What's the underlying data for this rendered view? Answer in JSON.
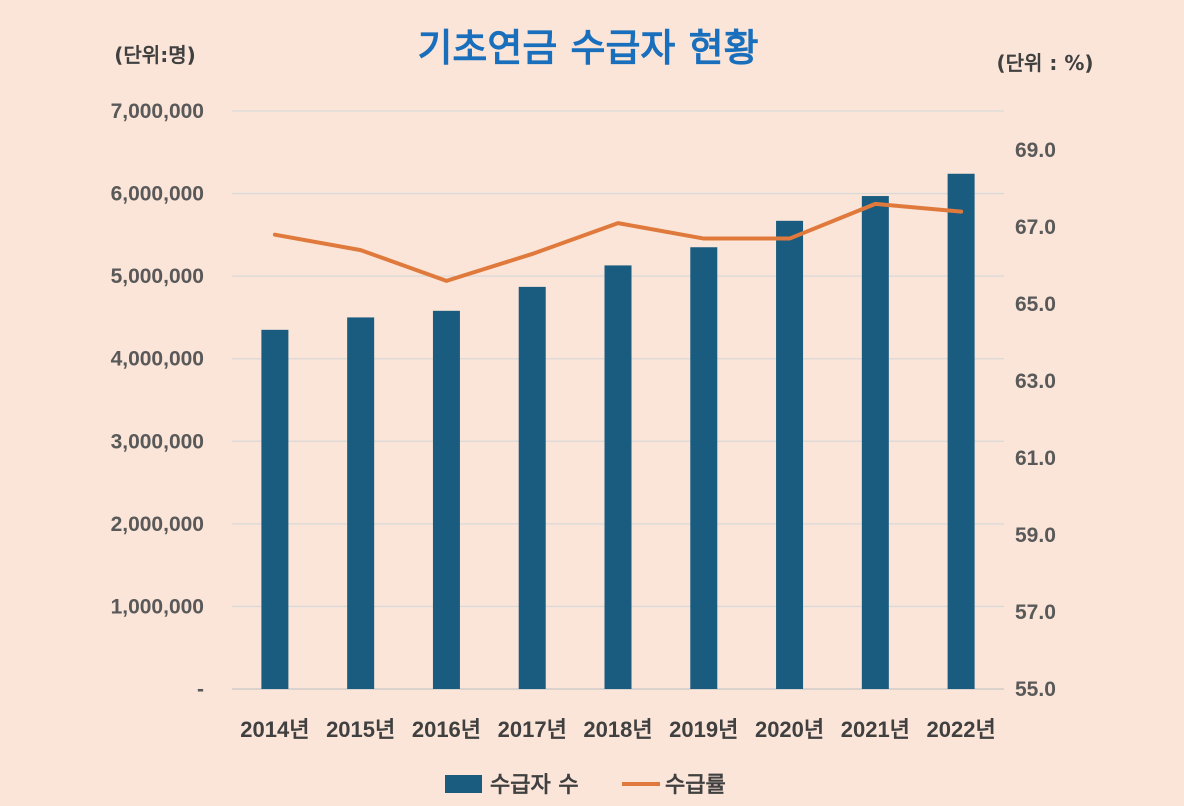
{
  "chart_data": {
    "type": "bar",
    "title": "기초연금 수급자 현황",
    "left_unit_label": "(단위:명)",
    "right_unit_label": "(단위 : %)",
    "categories": [
      "2014년",
      "2015년",
      "2016년",
      "2017년",
      "2018년",
      "2019년",
      "2020년",
      "2021년",
      "2022년"
    ],
    "series": [
      {
        "name": "수급자 수",
        "type": "bar",
        "axis": "left",
        "color": "#1a5c80",
        "values": [
          4350000,
          4500000,
          4580000,
          4870000,
          5130000,
          5350000,
          5670000,
          5970000,
          6240000
        ]
      },
      {
        "name": "수급률",
        "type": "line",
        "axis": "right",
        "color": "#e07a3c",
        "values": [
          66.8,
          66.4,
          65.6,
          66.3,
          67.1,
          66.7,
          66.7,
          67.6,
          67.4
        ]
      }
    ],
    "y_left": {
      "min": 0,
      "max": 7000000,
      "ticks": [
        0,
        1000000,
        2000000,
        3000000,
        4000000,
        5000000,
        6000000,
        7000000
      ],
      "tick_labels": [
        "-",
        "1,000,000",
        "2,000,000",
        "3,000,000",
        "4,000,000",
        "5,000,000",
        "6,000,000",
        "7,000,000"
      ]
    },
    "y_right": {
      "min": 55,
      "max": 70,
      "ticks": [
        55,
        57,
        59,
        61,
        63,
        65,
        67,
        69
      ],
      "tick_labels": [
        "55.0",
        "57.0",
        "59.0",
        "61.0",
        "63.0",
        "65.0",
        "67.0",
        "69.0"
      ]
    },
    "grid": true,
    "legend_position": "bottom",
    "colors": {
      "background": "#fbe5d8",
      "title": "#1a6fbd",
      "grid": "#d9d9d9"
    }
  }
}
